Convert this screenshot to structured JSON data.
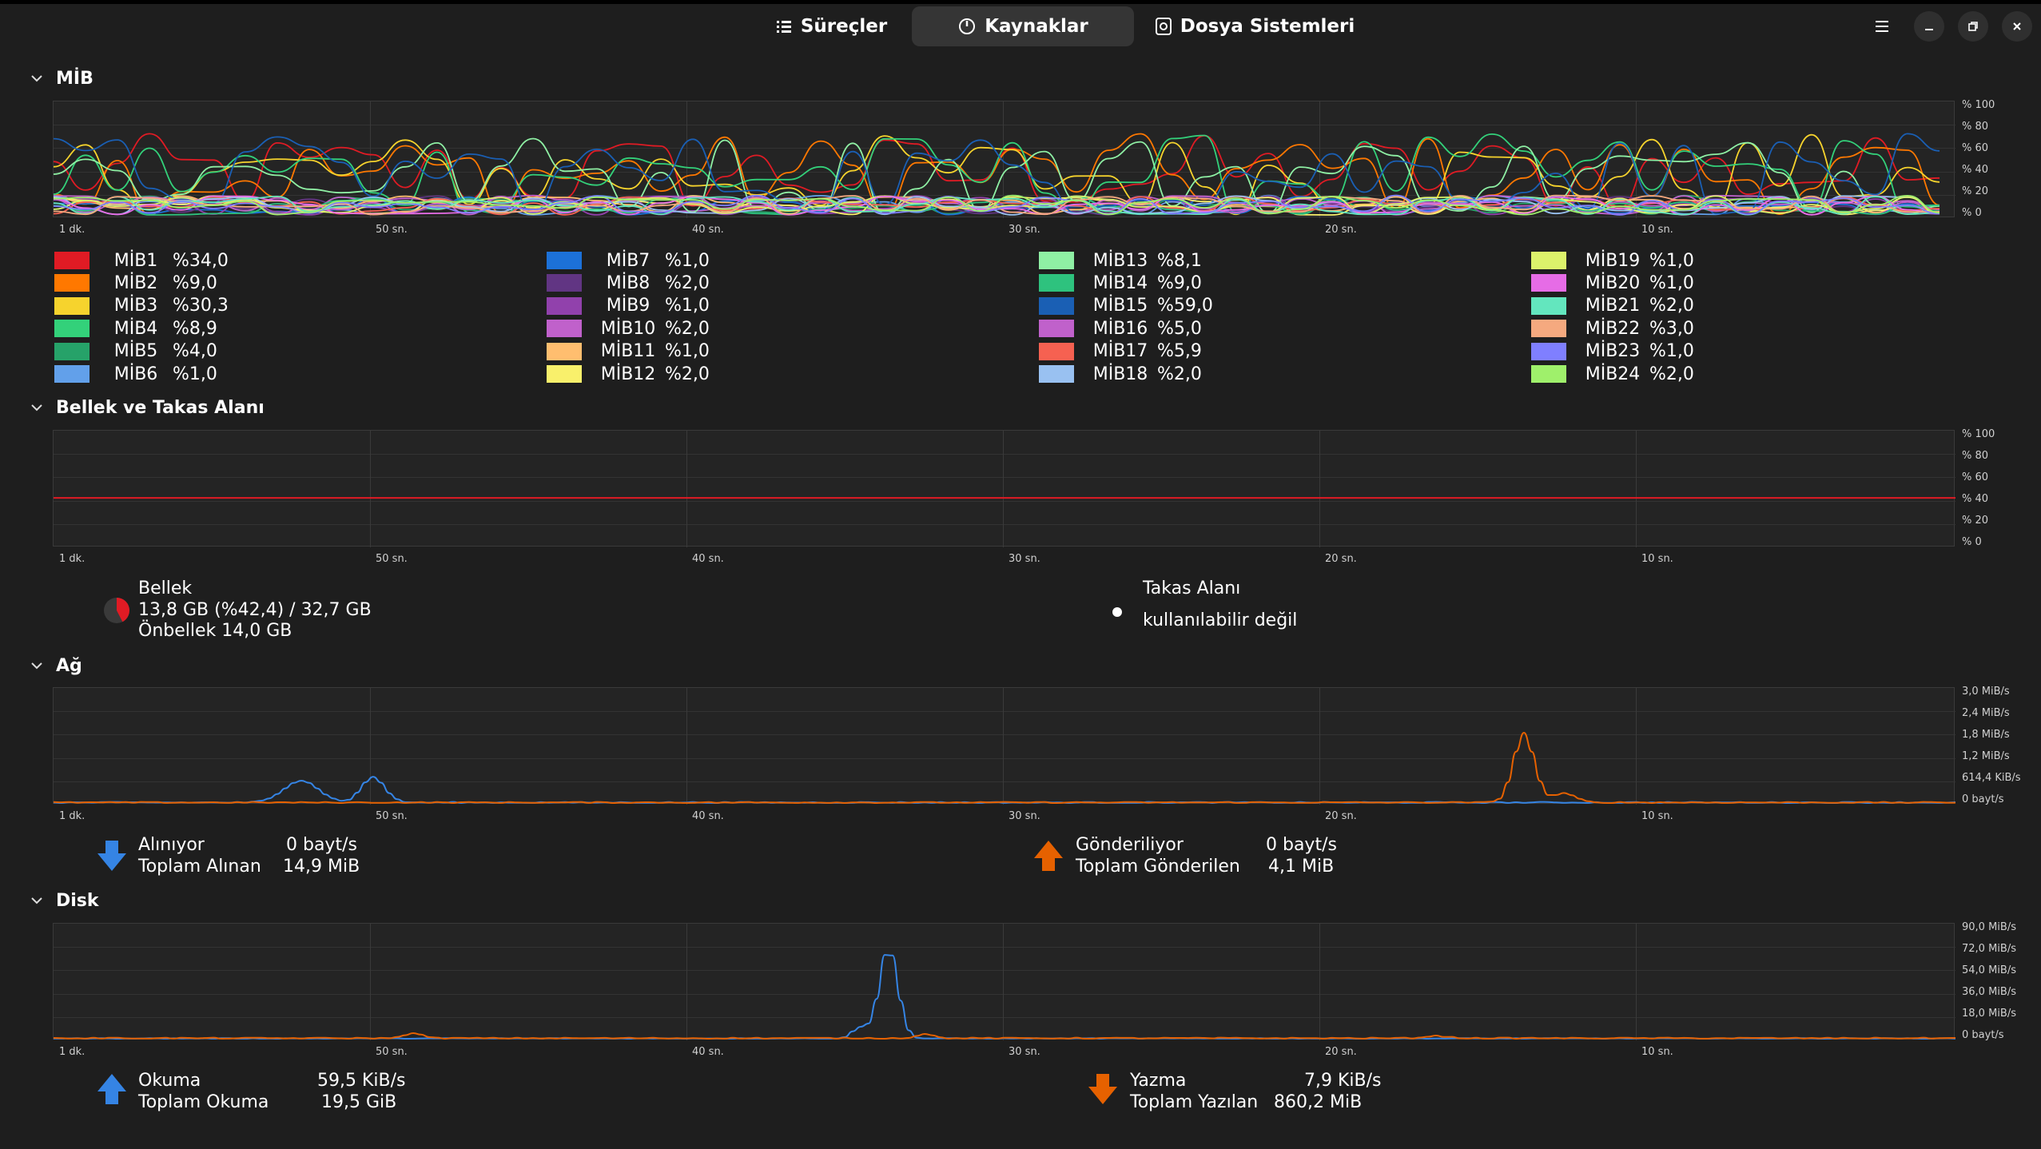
{
  "tabs": [
    {
      "label": "Süreçler",
      "icon": "list-icon"
    },
    {
      "label": "Kaynaklar",
      "icon": "gauge-icon"
    },
    {
      "label": "Dosya Sistemleri",
      "icon": "disk-icon"
    }
  ],
  "sections": {
    "cpu": {
      "title": "MİB"
    },
    "memory": {
      "title": "Bellek ve Takas Alanı"
    },
    "network": {
      "title": "Ağ"
    },
    "disk": {
      "title": "Disk"
    }
  },
  "x_ticks": [
    "1 dk.",
    "50 sn.",
    "40 sn.",
    "30 sn.",
    "20 sn.",
    "10 sn."
  ],
  "cpu_y_ticks": [
    "% 100",
    "% 80",
    "% 60",
    "% 40",
    "% 20",
    "% 0"
  ],
  "mem_y_ticks": [
    "% 100",
    "% 80",
    "% 60",
    "% 40",
    "% 20",
    "% 0"
  ],
  "net_y_ticks": [
    "3,0 MiB/s",
    "2,4 MiB/s",
    "1,8 MiB/s",
    "1,2 MiB/s",
    "614,4 KiB/s",
    "0 bayt/s"
  ],
  "disk_y_ticks": [
    "90,0 MiB/s",
    "72,0 MiB/s",
    "54,0 MiB/s",
    "36,0 MiB/s",
    "18,0 MiB/s",
    "0 bayt/s"
  ],
  "cpus": [
    {
      "name": "MİB1",
      "value": "%34,0",
      "color": "#e01b24"
    },
    {
      "name": "MİB2",
      "value": "%9,0",
      "color": "#ff7800"
    },
    {
      "name": "MİB3",
      "value": "%30,3",
      "color": "#f6d32d"
    },
    {
      "name": "MİB4",
      "value": "%8,9",
      "color": "#33d17a"
    },
    {
      "name": "MİB5",
      "value": "%4,0",
      "color": "#26a269"
    },
    {
      "name": "MİB6",
      "value": "%1,0",
      "color": "#62a0ea"
    },
    {
      "name": "MİB7",
      "value": "%1,0",
      "color": "#1c71d8"
    },
    {
      "name": "MİB8",
      "value": "%2,0",
      "color": "#613583"
    },
    {
      "name": "MİB9",
      "value": "%1,0",
      "color": "#9141ac"
    },
    {
      "name": "MİB10",
      "value": "%2,0",
      "color": "#c061cb"
    },
    {
      "name": "MİB11",
      "value": "%1,0",
      "color": "#ffbe6f"
    },
    {
      "name": "MİB12",
      "value": "%2,0",
      "color": "#f9f06b"
    },
    {
      "name": "MİB13",
      "value": "%8,1",
      "color": "#8ff0a4"
    },
    {
      "name": "MİB14",
      "value": "%9,0",
      "color": "#2ec27e"
    },
    {
      "name": "MİB15",
      "value": "%59,0",
      "color": "#1a5fb4"
    },
    {
      "name": "MİB16",
      "value": "%5,0",
      "color": "#c061cb"
    },
    {
      "name": "MİB17",
      "value": "%5,9",
      "color": "#f66151"
    },
    {
      "name": "MİB18",
      "value": "%2,0",
      "color": "#99c1f1"
    },
    {
      "name": "MİB19",
      "value": "%1,0",
      "color": "#dcf26b"
    },
    {
      "name": "MİB20",
      "value": "%1,0",
      "color": "#e66ce6"
    },
    {
      "name": "MİB21",
      "value": "%2,0",
      "color": "#63e6be"
    },
    {
      "name": "MİB22",
      "value": "%3,0",
      "color": "#f5a97f"
    },
    {
      "name": "MİB23",
      "value": "%1,0",
      "color": "#7f7fff"
    },
    {
      "name": "MİB24",
      "value": "%2,0",
      "color": "#9ff06b"
    }
  ],
  "memory": {
    "label": "Bellek",
    "usage": "13,8 GB (%42,4) / 32,7 GB",
    "cache": "Önbellek 14,0 GB",
    "percent": 42.4,
    "color": "#e01b24"
  },
  "swap": {
    "label": "Takas Alanı",
    "status": "kullanılabilir değil"
  },
  "network": {
    "receiving_label": "Alınıyor",
    "receiving_value": "0 bayt/s",
    "total_received_label": "Toplam Alınan",
    "total_received_value": "14,9 MiB",
    "sending_label": "Gönderiliyor",
    "sending_value": "0 bayt/s",
    "total_sent_label": "Toplam Gönderilen",
    "total_sent_value": "4,1 MiB",
    "receive_color": "#3584e4",
    "send_color": "#e66100"
  },
  "disk": {
    "read_label": "Okuma",
    "read_value": "59,5 KiB/s",
    "total_read_label": "Toplam Okuma",
    "total_read_value": "19,5 GiB",
    "write_label": "Yazma",
    "write_value": "7,9 KiB/s",
    "total_write_label": "Toplam Yazılan",
    "total_write_value": "860,2 MiB",
    "read_color": "#3584e4",
    "write_color": "#e66100"
  }
}
